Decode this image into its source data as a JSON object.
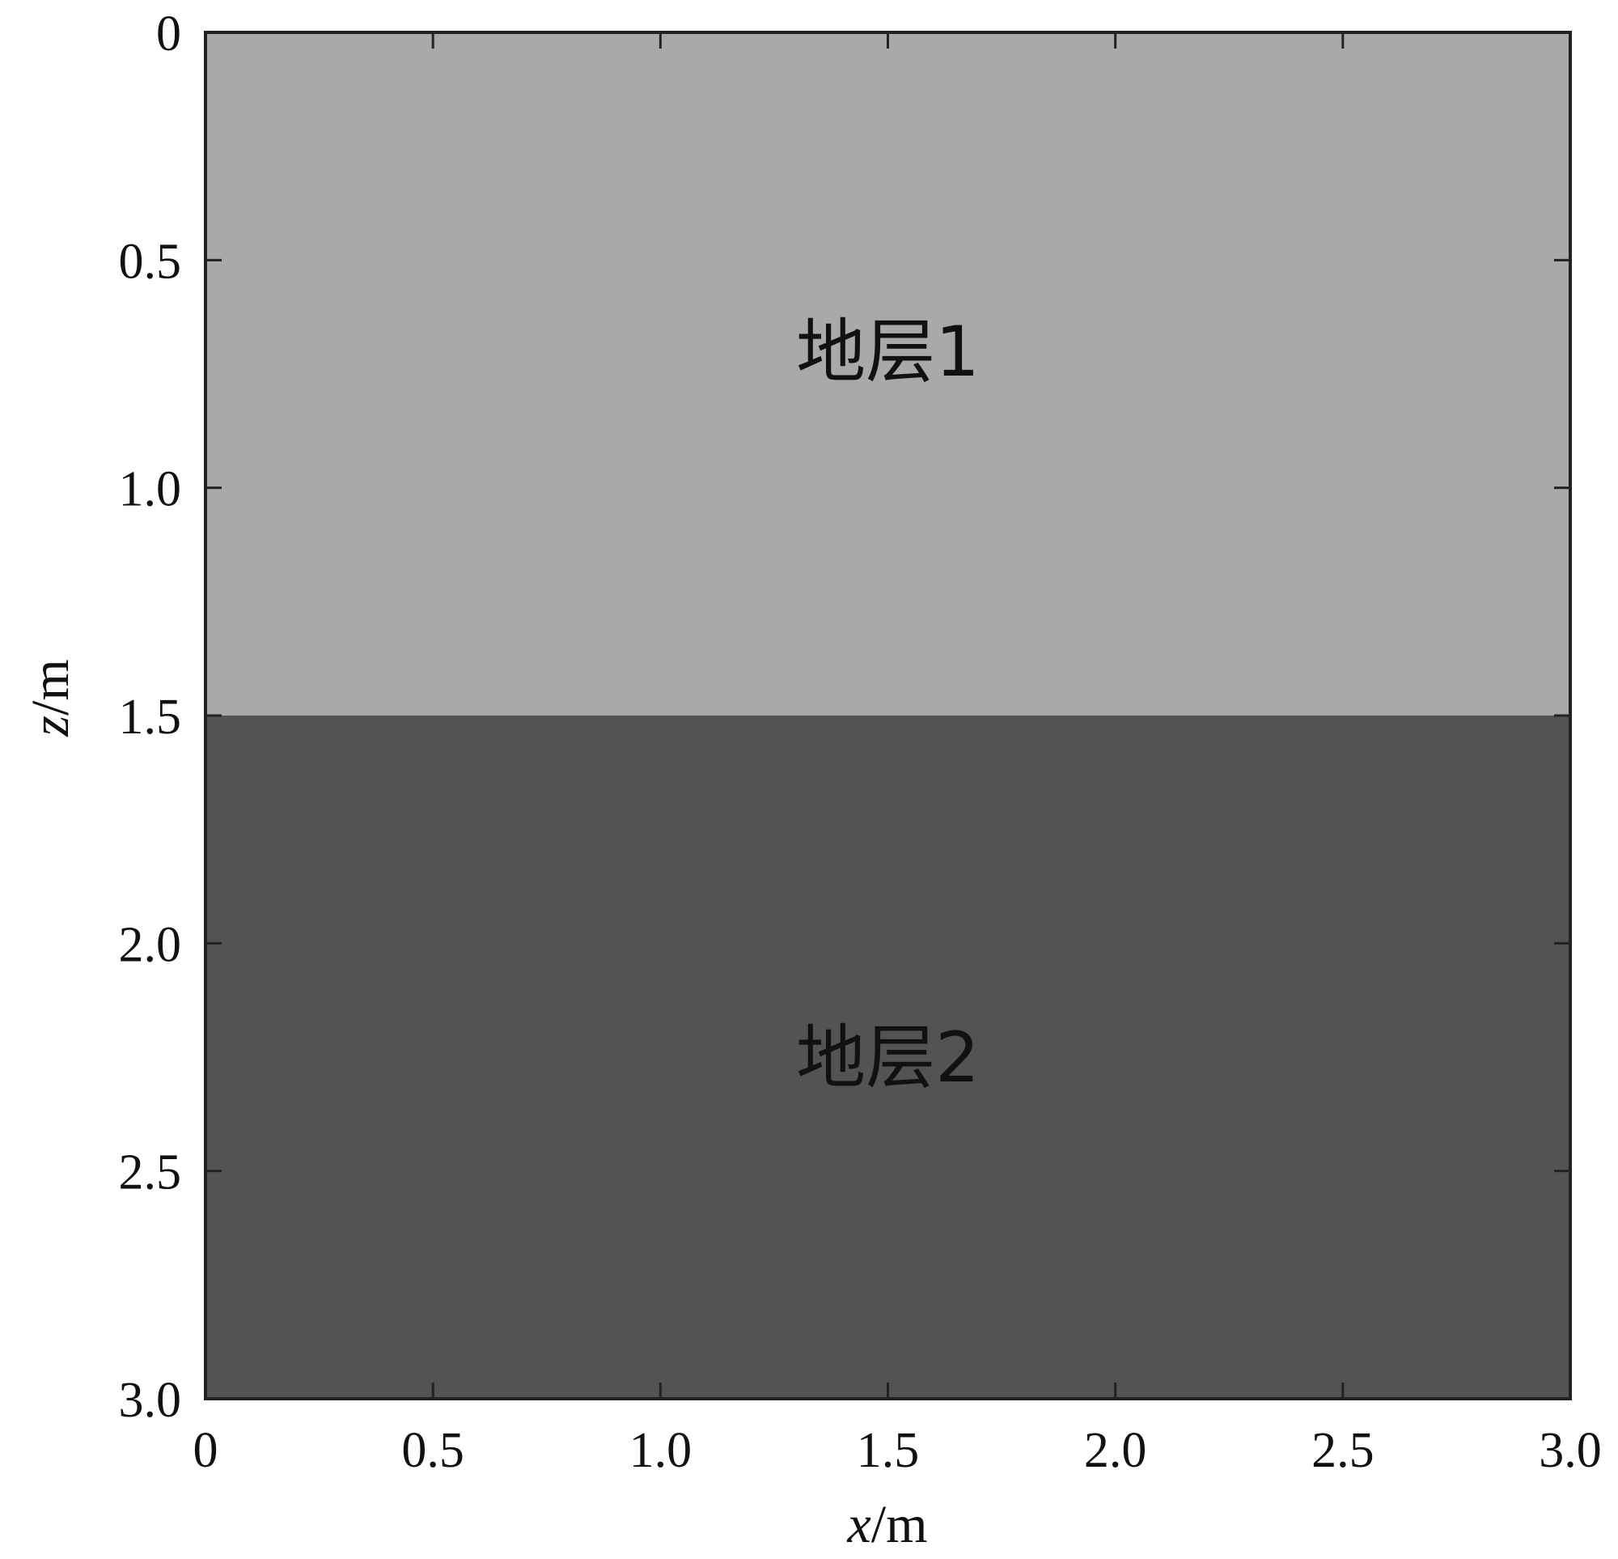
{
  "chart_data": {
    "type": "area",
    "xlabel_var": "x",
    "xlabel_unit": "/m",
    "ylabel_var": "z",
    "ylabel_unit": "/m",
    "xlim": [
      0,
      3.0
    ],
    "ylim": [
      0,
      3.0
    ],
    "y_inverted": true,
    "grid": false,
    "x_ticks": [
      "0",
      "0.5",
      "1.0",
      "1.5",
      "2.0",
      "2.5",
      "3.0"
    ],
    "y_ticks": [
      "0",
      "0.5",
      "1.0",
      "1.5",
      "2.0",
      "2.5",
      "3.0"
    ],
    "x_tick_values": [
      0,
      0.5,
      1.0,
      1.5,
      2.0,
      2.5,
      3.0
    ],
    "y_tick_values": [
      0,
      0.5,
      1.0,
      1.5,
      2.0,
      2.5,
      3.0
    ],
    "layers": [
      {
        "name": "地层1",
        "z_top": 0,
        "z_bottom": 1.5,
        "color": "#a9a9a9",
        "label_x": 1.5,
        "label_z": 0.7
      },
      {
        "name": "地层2",
        "z_top": 1.5,
        "z_bottom": 3.0,
        "color": "#535353",
        "label_x": 1.5,
        "label_z": 2.25
      }
    ]
  }
}
